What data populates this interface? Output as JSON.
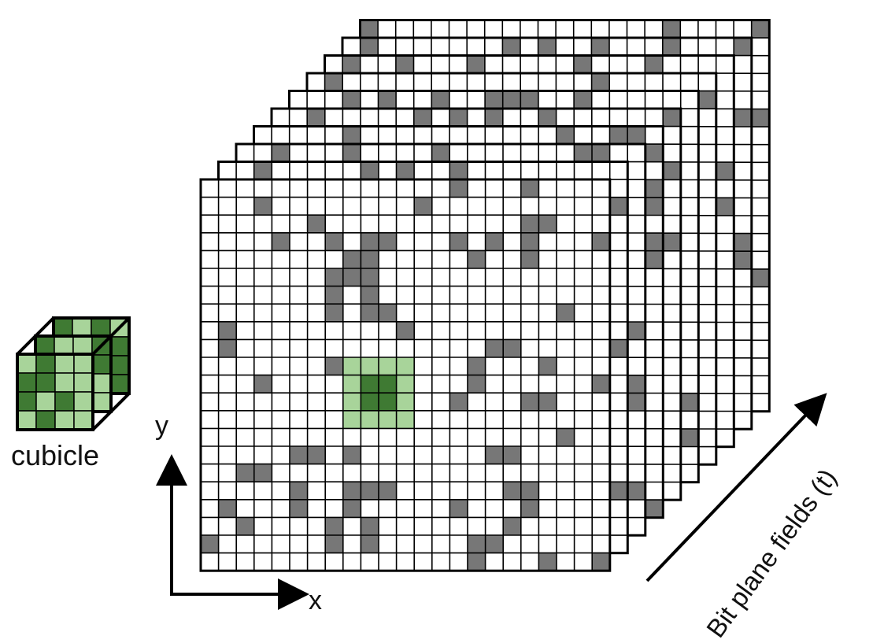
{
  "labels": {
    "cubicle": "cubicle",
    "y_axis": "y",
    "x_axis": "x",
    "time_axis": "Bit plane fields (t)"
  },
  "stack": {
    "layers": 10,
    "grid_cols": 23,
    "grid_rows": 22,
    "fill_ratio": 0.14
  },
  "cubicle_block": {
    "layers": 3,
    "grid": 4,
    "highlight_size": 4
  },
  "colors": {
    "background": "#ffffff",
    "grid_line": "#000000",
    "active_cell": "#777777",
    "inactive_cell": "#ffffff",
    "highlight_light": "#a8d49a",
    "highlight_dark": "#3f7a33"
  }
}
